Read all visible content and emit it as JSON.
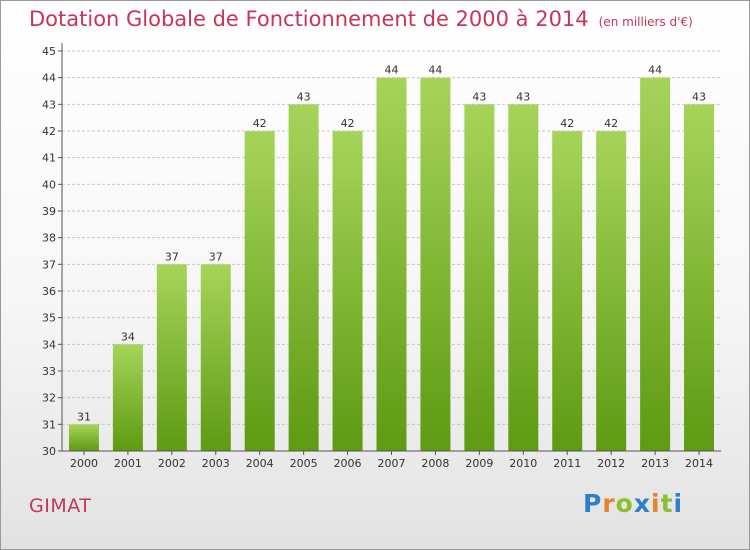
{
  "header": {
    "title": "Dotation Globale de Fonctionnement de 2000 à 2014",
    "subtitle": "(en milliers d'€)"
  },
  "footer": {
    "place": "GIMAT",
    "brand": "Proxiti",
    "brand_letters": [
      {
        "char": "P",
        "color": "#2f7fc8"
      },
      {
        "char": "r",
        "color": "#e8812a"
      },
      {
        "char": "o",
        "color": "#8dbf2f"
      },
      {
        "char": "x",
        "color": "#2f7fc8"
      },
      {
        "char": "i",
        "color": "#e8812a"
      },
      {
        "char": "t",
        "color": "#8dbf2f"
      },
      {
        "char": "i",
        "color": "#2f7fc8"
      }
    ]
  },
  "colors": {
    "accent": "#c8345a",
    "bar_top": "#a6d45a",
    "bar_bottom": "#5e9a12",
    "grid": "#c8c8c8",
    "text": "#333333"
  },
  "chart_data": {
    "type": "bar",
    "title": "Dotation Globale de Fonctionnement de 2000 à 2014",
    "subtitle": "(en milliers d'€)",
    "categories": [
      "2000",
      "2001",
      "2002",
      "2003",
      "2004",
      "2005",
      "2006",
      "2007",
      "2008",
      "2009",
      "2010",
      "2011",
      "2012",
      "2013",
      "2014"
    ],
    "values": [
      31,
      34,
      37,
      37,
      42,
      43,
      42,
      44,
      44,
      43,
      43,
      42,
      42,
      44,
      43
    ],
    "ylim": [
      30,
      45
    ],
    "yticks": [
      30,
      31,
      32,
      33,
      34,
      35,
      36,
      37,
      38,
      39,
      40,
      41,
      42,
      43,
      44,
      45
    ],
    "grid": true,
    "data_labels": true
  }
}
